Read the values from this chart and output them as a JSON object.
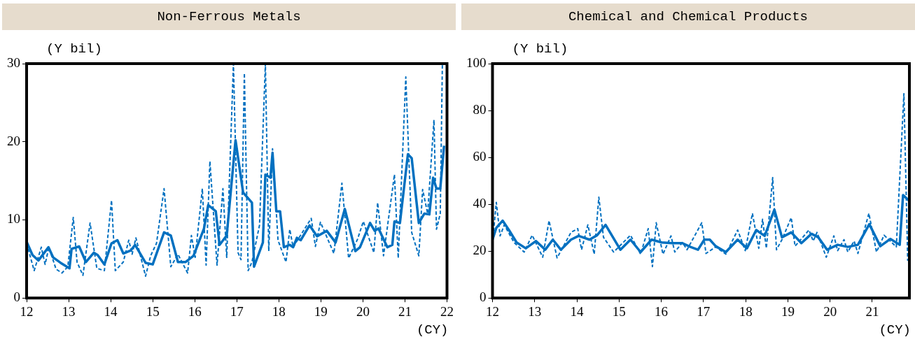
{
  "chart_data": [
    {
      "type": "line",
      "title": "Non-Ferrous Metals",
      "ylabel": "(Y bil)",
      "xlabel": "(CY)",
      "xlim": [
        12,
        22
      ],
      "xticks": [
        12,
        13,
        14,
        15,
        16,
        17,
        18,
        19,
        20,
        21,
        22
      ],
      "ylim": [
        0,
        30
      ],
      "yticks": [
        0,
        10,
        20,
        30
      ],
      "grid": false,
      "legend": false,
      "marker": "none",
      "series": [
        {
          "color": "#0070c0",
          "line_style": "solid",
          "x": [
            12.0,
            12.14,
            12.28,
            12.52,
            12.63,
            12.81,
            13.02,
            13.07,
            13.25,
            13.41,
            13.6,
            13.69,
            13.85,
            14.02,
            14.16,
            14.3,
            14.48,
            14.58,
            14.83,
            15.0,
            15.27,
            15.43,
            15.6,
            15.78,
            15.97,
            16.22,
            16.32,
            16.5,
            16.59,
            16.76,
            16.97,
            17.15,
            17.36,
            17.41,
            17.62,
            17.68,
            17.8,
            17.85,
            17.94,
            18.03,
            18.12,
            18.26,
            18.34,
            18.43,
            18.52,
            18.73,
            18.91,
            19.14,
            19.35,
            19.57,
            19.82,
            19.93,
            20.17,
            20.28,
            20.37,
            20.58,
            20.7,
            20.75,
            20.88,
            21.07,
            21.16,
            21.33,
            21.46,
            21.58,
            21.67,
            21.75,
            21.84,
            21.93
          ],
          "values": [
            7.2,
            5.5,
            4.8,
            6.5,
            5.2,
            4.5,
            3.8,
            6.3,
            6.6,
            4.6,
            5.8,
            5.5,
            4.3,
            7.0,
            7.4,
            5.7,
            6.1,
            6.8,
            4.5,
            4.3,
            8.4,
            8.0,
            4.6,
            4.6,
            5.4,
            8.9,
            11.9,
            11.1,
            6.8,
            8.0,
            20.2,
            13.5,
            12.2,
            4.0,
            7.1,
            15.8,
            15.4,
            18.6,
            11.1,
            11.1,
            6.5,
            6.8,
            6.5,
            7.7,
            7.4,
            9.3,
            7.9,
            8.6,
            7.1,
            11.4,
            6.0,
            6.5,
            9.6,
            8.6,
            8.9,
            6.5,
            6.8,
            9.8,
            9.6,
            18.4,
            17.9,
            9.6,
            10.8,
            10.7,
            15.4,
            14.0,
            14.0,
            19.5
          ]
        },
        {
          "color": "#0070c0",
          "line_style": "dashed",
          "x": [
            12.0,
            12.18,
            12.35,
            12.44,
            12.53,
            12.7,
            12.84,
            12.98,
            13.11,
            13.2,
            13.34,
            13.51,
            13.67,
            13.85,
            14.02,
            14.11,
            14.3,
            14.43,
            14.51,
            14.6,
            14.83,
            14.95,
            15.09,
            15.27,
            15.43,
            15.6,
            15.83,
            15.92,
            16.01,
            16.18,
            16.27,
            16.36,
            16.53,
            16.67,
            16.76,
            16.92,
            17.03,
            17.1,
            17.18,
            17.27,
            17.36,
            17.54,
            17.68,
            17.76,
            17.85,
            17.98,
            18.17,
            18.26,
            18.34,
            18.77,
            18.87,
            18.99,
            19.31,
            19.5,
            19.66,
            19.87,
            20.01,
            20.26,
            20.35,
            20.49,
            20.75,
            20.84,
            21.02,
            21.16,
            21.33,
            21.42,
            21.54,
            21.69,
            21.75,
            21.84,
            21.89
          ],
          "values": [
            7.0,
            3.5,
            6.5,
            4.3,
            6.5,
            3.7,
            3.2,
            4.0,
            10.3,
            4.6,
            2.9,
            9.6,
            3.8,
            3.5,
            12.5,
            3.5,
            4.6,
            7.4,
            5.6,
            7.7,
            2.8,
            5.4,
            7.0,
            14.0,
            4.0,
            5.6,
            3.2,
            8.0,
            5.2,
            14.0,
            4.2,
            17.5,
            4.2,
            14.0,
            5.2,
            30,
            5.8,
            4.9,
            28.8,
            3.5,
            4.6,
            9.3,
            30,
            6.0,
            19.1,
            7.4,
            4.6,
            8.8,
            6.5,
            10.2,
            6.6,
            9.7,
            5.7,
            14.7,
            5.1,
            7.5,
            9.8,
            5.8,
            12.2,
            5.4,
            15.8,
            5.1,
            28.3,
            8.4,
            5.4,
            13.9,
            10.8,
            22.8,
            8.8,
            10.8,
            30
          ]
        }
      ]
    },
    {
      "type": "line",
      "title": "Chemical and Chemical Products",
      "ylabel": "(Y bil)",
      "xlabel": "(CY)",
      "xlim": [
        12,
        21.88
      ],
      "xticks": [
        12,
        13,
        14,
        15,
        16,
        17,
        18,
        19,
        20,
        21
      ],
      "ylim": [
        0,
        100
      ],
      "yticks": [
        0,
        20,
        40,
        60,
        80,
        100
      ],
      "grid": false,
      "legend": false,
      "marker": "none",
      "series": [
        {
          "color": "#0070c0",
          "line_style": "solid",
          "x": [
            12.0,
            12.09,
            12.24,
            12.39,
            12.57,
            12.79,
            13.03,
            13.25,
            13.43,
            13.62,
            13.86,
            14.04,
            14.3,
            14.48,
            14.68,
            15.03,
            15.27,
            15.51,
            15.77,
            16.01,
            16.25,
            16.5,
            16.69,
            16.87,
            17.02,
            17.15,
            17.29,
            17.53,
            17.81,
            18.03,
            18.25,
            18.45,
            18.68,
            18.86,
            19.08,
            19.32,
            19.56,
            19.72,
            19.93,
            20.18,
            20.42,
            20.66,
            20.93,
            21.19,
            21.43,
            21.65,
            21.73,
            21.88
          ],
          "values": [
            24.9,
            29.9,
            33.0,
            29.0,
            23.7,
            21.2,
            24.3,
            20.6,
            24.9,
            20.6,
            24.9,
            26.5,
            24.9,
            26.8,
            31.2,
            20.6,
            24.9,
            19.6,
            24.9,
            23.7,
            23.4,
            23.4,
            21.8,
            20.6,
            24.9,
            24.9,
            22.1,
            19.6,
            24.9,
            21.2,
            29.0,
            26.5,
            37.7,
            25.9,
            28.0,
            23.4,
            27.4,
            25.9,
            20.6,
            22.7,
            21.8,
            22.7,
            31.5,
            22.1,
            25.2,
            22.7,
            43.9,
            41.4
          ]
        },
        {
          "color": "#0070c0",
          "line_style": "dashed",
          "x": [
            12.0,
            12.09,
            12.18,
            12.28,
            12.51,
            12.75,
            12.94,
            13.19,
            13.34,
            13.53,
            13.86,
            14.02,
            14.11,
            14.26,
            14.41,
            14.52,
            14.63,
            14.87,
            15.27,
            15.51,
            15.69,
            15.79,
            15.88,
            16.04,
            16.23,
            16.32,
            16.5,
            16.61,
            16.96,
            17.06,
            17.29,
            17.53,
            17.81,
            17.99,
            18.16,
            18.31,
            18.4,
            18.49,
            18.64,
            18.73,
            18.86,
            19.08,
            19.17,
            19.5,
            19.6,
            19.69,
            19.91,
            20.09,
            20.18,
            20.33,
            20.42,
            20.57,
            20.66,
            20.92,
            21.1,
            21.28,
            21.57,
            21.75,
            21.84
          ],
          "values": [
            23.7,
            40.8,
            26.5,
            31.2,
            23.7,
            19.6,
            26.8,
            17.4,
            33.0,
            17.1,
            28.0,
            29.6,
            20.6,
            31.2,
            18.7,
            43.0,
            25.9,
            19.6,
            26.8,
            18.7,
            29.6,
            13.4,
            32.1,
            18.7,
            26.5,
            19.6,
            23.7,
            20.6,
            32.1,
            19.0,
            21.8,
            18.7,
            29.0,
            20.2,
            36.1,
            21.2,
            33.6,
            21.2,
            51.4,
            20.6,
            24.9,
            34.3,
            22.1,
            29.0,
            24.3,
            28.0,
            17.4,
            26.5,
            20.2,
            24.9,
            19.6,
            24.3,
            19.0,
            36.1,
            19.6,
            26.8,
            21.8,
            87.2,
            15.9
          ]
        }
      ]
    }
  ]
}
